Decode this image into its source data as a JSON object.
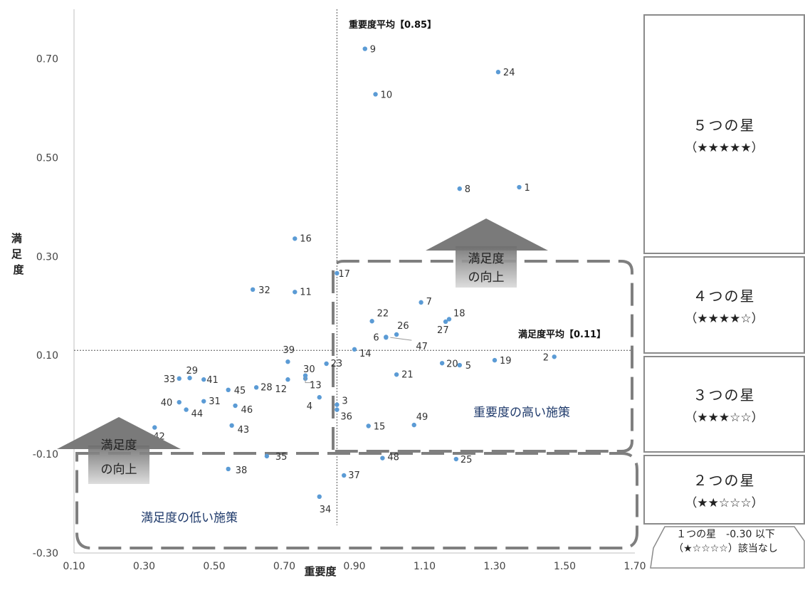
{
  "chart_data": {
    "type": "scatter",
    "xlabel": "重要度",
    "ylabel": "満足度",
    "xlim": [
      0.1,
      1.7
    ],
    "ylim": [
      -0.3,
      0.8
    ],
    "x_ticks": [
      "0.10",
      "0.30",
      "0.50",
      "0.70",
      "0.90",
      "1.10",
      "1.30",
      "1.50",
      "1.70"
    ],
    "y_ticks": [
      "-0.30",
      "-0.10",
      "0.10",
      "0.30",
      "0.50",
      "0.70"
    ],
    "x_tick_values": [
      0.1,
      0.3,
      0.5,
      0.7,
      0.9,
      1.1,
      1.3,
      1.5,
      1.7
    ],
    "y_tick_values": [
      -0.3,
      -0.1,
      0.1,
      0.3,
      0.5,
      0.7
    ],
    "importance_average": {
      "value": 0.85,
      "label": "重要度平均【0.85】"
    },
    "satisfaction_average": {
      "value": 0.11,
      "label": "満足度平均【0.11】"
    },
    "points": [
      {
        "label": "1",
        "x": 1.37,
        "y": 0.44
      },
      {
        "label": "2",
        "x": 1.47,
        "y": 0.097
      },
      {
        "label": "3",
        "x": 0.85,
        "y": 0.0
      },
      {
        "label": "4",
        "x": 0.8,
        "y": 0.015
      },
      {
        "label": "5",
        "x": 1.2,
        "y": 0.08
      },
      {
        "label": "6",
        "x": 0.99,
        "y": 0.137
      },
      {
        "label": "7",
        "x": 1.09,
        "y": 0.207
      },
      {
        "label": "8",
        "x": 1.2,
        "y": 0.437
      },
      {
        "label": "9",
        "x": 0.93,
        "y": 0.72
      },
      {
        "label": "10",
        "x": 0.96,
        "y": 0.628
      },
      {
        "label": "11",
        "x": 0.73,
        "y": 0.228
      },
      {
        "label": "12",
        "x": 0.71,
        "y": 0.051
      },
      {
        "label": "13",
        "x": 0.76,
        "y": 0.059
      },
      {
        "label": "14",
        "x": 0.9,
        "y": 0.112
      },
      {
        "label": "15",
        "x": 0.94,
        "y": -0.043
      },
      {
        "label": "16",
        "x": 0.73,
        "y": 0.336
      },
      {
        "label": "17",
        "x": 0.85,
        "y": 0.266
      },
      {
        "label": "18",
        "x": 1.17,
        "y": 0.173
      },
      {
        "label": "19",
        "x": 1.3,
        "y": 0.09
      },
      {
        "label": "20",
        "x": 1.15,
        "y": 0.084
      },
      {
        "label": "21",
        "x": 1.02,
        "y": 0.061
      },
      {
        "label": "22",
        "x": 0.95,
        "y": 0.169
      },
      {
        "label": "23",
        "x": 0.82,
        "y": 0.083
      },
      {
        "label": "24",
        "x": 1.31,
        "y": 0.673
      },
      {
        "label": "25",
        "x": 1.19,
        "y": -0.11
      },
      {
        "label": "26",
        "x": 1.02,
        "y": 0.142
      },
      {
        "label": "27",
        "x": 1.16,
        "y": 0.168
      },
      {
        "label": "28",
        "x": 0.62,
        "y": 0.035
      },
      {
        "label": "29",
        "x": 0.43,
        "y": 0.054
      },
      {
        "label": "30",
        "x": 0.76,
        "y": 0.053
      },
      {
        "label": "31",
        "x": 0.47,
        "y": 0.007
      },
      {
        "label": "32",
        "x": 0.61,
        "y": 0.233
      },
      {
        "label": "33",
        "x": 0.4,
        "y": 0.053
      },
      {
        "label": "34",
        "x": 0.8,
        "y": -0.186
      },
      {
        "label": "35",
        "x": 0.65,
        "y": -0.104
      },
      {
        "label": "36",
        "x": 0.85,
        "y": -0.01
      },
      {
        "label": "37",
        "x": 0.87,
        "y": -0.143
      },
      {
        "label": "38",
        "x": 0.54,
        "y": -0.13
      },
      {
        "label": "39",
        "x": 0.71,
        "y": 0.087
      },
      {
        "label": "40",
        "x": 0.4,
        "y": 0.005
      },
      {
        "label": "41",
        "x": 0.47,
        "y": 0.051
      },
      {
        "label": "42",
        "x": 0.33,
        "y": -0.046
      },
      {
        "label": "43",
        "x": 0.55,
        "y": -0.042
      },
      {
        "label": "44",
        "x": 0.42,
        "y": -0.01
      },
      {
        "label": "45",
        "x": 0.54,
        "y": 0.03
      },
      {
        "label": "46",
        "x": 0.56,
        "y": -0.002
      },
      {
        "label": "47",
        "x": 0.99,
        "y": 0.136
      },
      {
        "label": "48",
        "x": 0.98,
        "y": -0.108
      },
      {
        "label": "49",
        "x": 1.07,
        "y": -0.041
      }
    ]
  },
  "annotations": {
    "high_importance_region": "重要度の高い施策",
    "low_satisfaction_region": "満足度の低い施策",
    "arrow_right_line1": "満足度",
    "arrow_right_line2": "の向上",
    "arrow_left_line1": "満足度",
    "arrow_left_line2": "の向上"
  },
  "star_panel": [
    {
      "title": "５つの星",
      "sub": "（★★★★★）"
    },
    {
      "title": "４つの星",
      "sub": "（★★★★☆）"
    },
    {
      "title": "３つの星",
      "sub": "（★★★☆☆）"
    },
    {
      "title": "２つの星",
      "sub": "（★★☆☆☆）"
    }
  ],
  "star_note": {
    "line1": "１つの星　-0.30 以下",
    "line2": "（★☆☆☆☆）該当なし"
  },
  "colors": {
    "point": "#5b9bd5",
    "dashed_box": "#7f7f7f",
    "arrow": "#7f7f7f"
  }
}
